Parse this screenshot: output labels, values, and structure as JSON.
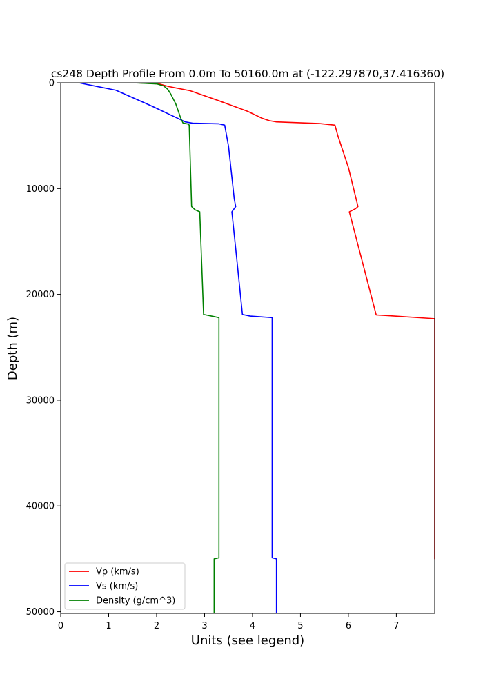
{
  "chart_data": {
    "type": "line",
    "title": "cs248 Depth Profile From 0.0m To 50160.0m at (-122.297870,37.416360)",
    "xlabel": "Units (see legend)",
    "ylabel": "Depth (m)",
    "xlim": [
      0,
      7.8
    ],
    "ylim": [
      50160,
      0
    ],
    "y_inverted": true,
    "xticks": [
      0,
      1,
      2,
      3,
      4,
      5,
      6,
      7
    ],
    "yticks": [
      0,
      10000,
      20000,
      30000,
      40000,
      50000
    ],
    "legend_position": "lower-left",
    "series": [
      {
        "name": "Vp (km/s)",
        "color": "#ff0000",
        "points": [
          [
            1.55,
            0
          ],
          [
            2.05,
            100
          ],
          [
            2.25,
            350
          ],
          [
            2.7,
            750
          ],
          [
            3.3,
            1700
          ],
          [
            3.9,
            2700
          ],
          [
            4.2,
            3350
          ],
          [
            4.35,
            3580
          ],
          [
            4.5,
            3700
          ],
          [
            5.4,
            3850
          ],
          [
            5.72,
            4000
          ],
          [
            5.78,
            5000
          ],
          [
            6.0,
            8000
          ],
          [
            6.2,
            11700
          ],
          [
            6.15,
            11900
          ],
          [
            6.02,
            12200
          ],
          [
            6.58,
            21950
          ],
          [
            6.8,
            22000
          ],
          [
            7.8,
            22300
          ],
          [
            7.8,
            45000
          ],
          [
            7.82,
            45050
          ],
          [
            7.82,
            50160
          ]
        ]
      },
      {
        "name": "Vs (km/s)",
        "color": "#0000ff",
        "points": [
          [
            0.38,
            0
          ],
          [
            0.65,
            250
          ],
          [
            1.15,
            700
          ],
          [
            1.9,
            2200
          ],
          [
            2.6,
            3700
          ],
          [
            2.75,
            3820
          ],
          [
            3.3,
            3880
          ],
          [
            3.42,
            4000
          ],
          [
            3.5,
            6000
          ],
          [
            3.62,
            11000
          ],
          [
            3.65,
            11700
          ],
          [
            3.57,
            12200
          ],
          [
            3.68,
            17000
          ],
          [
            3.79,
            21900
          ],
          [
            3.95,
            22050
          ],
          [
            4.41,
            22200
          ],
          [
            4.41,
            44900
          ],
          [
            4.5,
            45000
          ],
          [
            4.5,
            50160
          ]
        ]
      },
      {
        "name": "Density (g/cm^3)",
        "color": "#008000",
        "points": [
          [
            1.5,
            0
          ],
          [
            2.0,
            100
          ],
          [
            2.15,
            300
          ],
          [
            2.23,
            600
          ],
          [
            2.3,
            1100
          ],
          [
            2.4,
            2000
          ],
          [
            2.5,
            3300
          ],
          [
            2.55,
            3800
          ],
          [
            2.66,
            3900
          ],
          [
            2.68,
            4000
          ],
          [
            2.73,
            11700
          ],
          [
            2.8,
            12000
          ],
          [
            2.9,
            12200
          ],
          [
            2.98,
            21900
          ],
          [
            3.2,
            22100
          ],
          [
            3.3,
            22200
          ],
          [
            3.3,
            44900
          ],
          [
            3.2,
            45000
          ],
          [
            3.2,
            50160
          ]
        ]
      }
    ]
  }
}
